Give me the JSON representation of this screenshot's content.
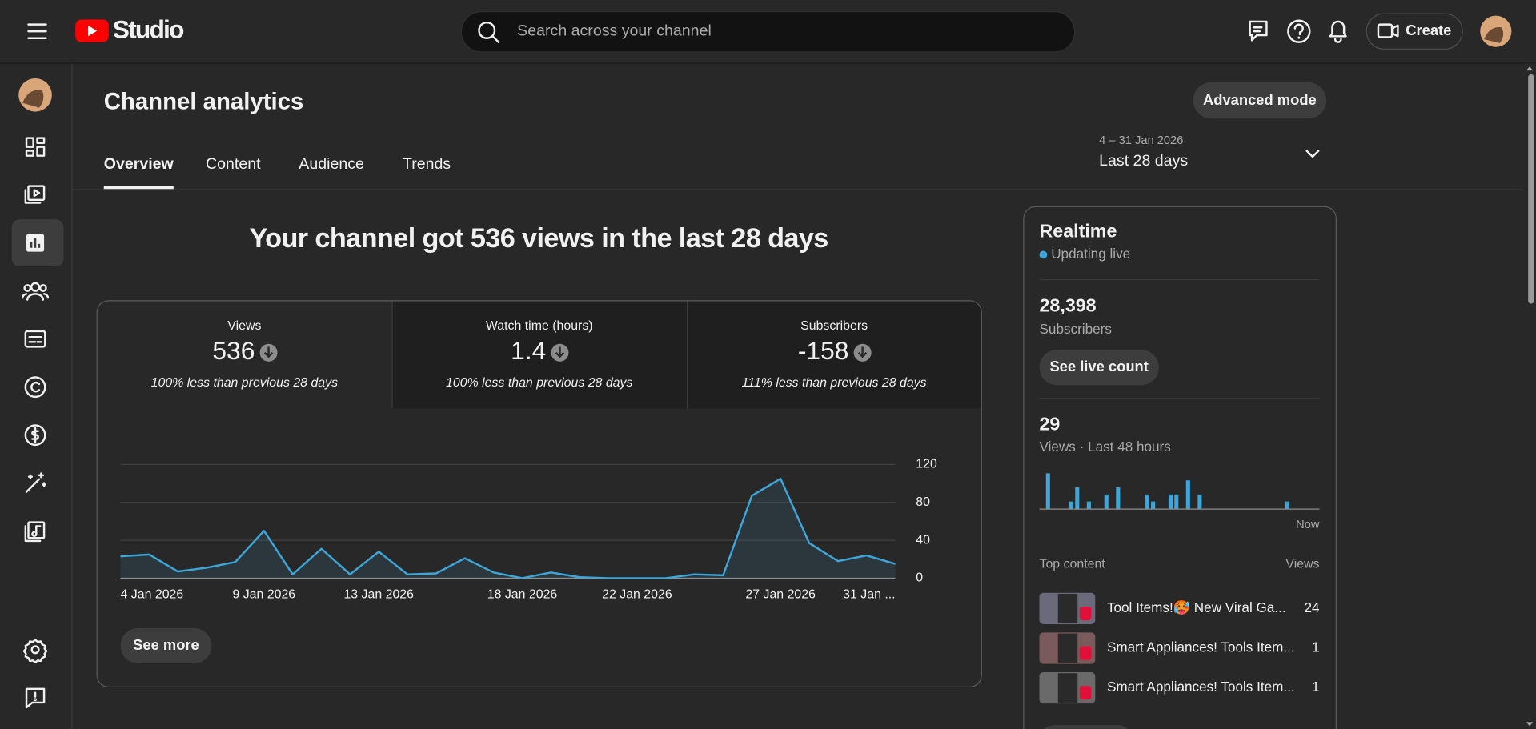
{
  "header": {
    "logo_text": "Studio",
    "search_placeholder": "Search across your channel",
    "create_button": "Create"
  },
  "page": {
    "title": "Channel analytics",
    "advanced_mode": "Advanced mode",
    "tabs": [
      "Overview",
      "Content",
      "Audience",
      "Trends"
    ],
    "date_range": "4 – 31 Jan 2026",
    "period": "Last 28 days",
    "headline": "Your channel got 536 views in the last 28 days"
  },
  "metrics": [
    {
      "label": "Views",
      "value": "536",
      "comparison": "100% less than previous 28 days"
    },
    {
      "label": "Watch time (hours)",
      "value": "1.4",
      "comparison": "100% less than previous 28 days"
    },
    {
      "label": "Subscribers",
      "value": "-158",
      "comparison": "111% less than previous 28 days"
    }
  ],
  "chart_data": {
    "type": "line",
    "categories": [
      "4 Jan 2026",
      null,
      null,
      null,
      null,
      "9 Jan 2026",
      null,
      null,
      null,
      "13 Jan 2026",
      null,
      null,
      null,
      null,
      "18 Jan 2026",
      null,
      null,
      null,
      "22 Jan 2026",
      null,
      null,
      null,
      null,
      "27 Jan 2026",
      null,
      null,
      null,
      "31 Jan ..."
    ],
    "values": [
      23,
      25,
      7,
      11,
      17,
      50,
      4,
      31,
      4,
      28,
      4,
      5,
      21,
      6,
      0,
      6,
      1,
      0,
      0,
      0,
      4,
      3,
      87,
      105,
      37,
      18,
      24,
      15
    ],
    "color": "#3ea6d8",
    "ylim": [
      0,
      120
    ],
    "yticks": [
      0,
      40,
      80,
      120
    ],
    "grid": true
  },
  "see_more": "See more",
  "realtime": {
    "title": "Realtime",
    "status": "Updating live",
    "subscribers": "28,398",
    "subscribers_label": "Subscribers",
    "live_count_button": "See live count",
    "views": "29",
    "views_label": "Views · Last 48 hours",
    "chart": {
      "type": "bar",
      "values": [
        0,
        5,
        0,
        0,
        0,
        1,
        3,
        0,
        1,
        0,
        0,
        2,
        0,
        3,
        0,
        0,
        0,
        0,
        2,
        1,
        0,
        0,
        2,
        2,
        0,
        4,
        0,
        2,
        0,
        0,
        0,
        0,
        0,
        0,
        0,
        0,
        0,
        0,
        0,
        0,
        0,
        0,
        1,
        0,
        0,
        0,
        0,
        0
      ],
      "color": "#3ea6d8"
    },
    "now_label": "Now",
    "top_content_header": "Top content",
    "views_header": "Views",
    "items": [
      {
        "title": "Tool Items!🥵 New Viral Ga...",
        "views": "24"
      },
      {
        "title": "Smart Appliances! Tools Item...",
        "views": "1"
      },
      {
        "title": "Smart Appliances! Tools Item...",
        "views": "1"
      }
    ]
  }
}
